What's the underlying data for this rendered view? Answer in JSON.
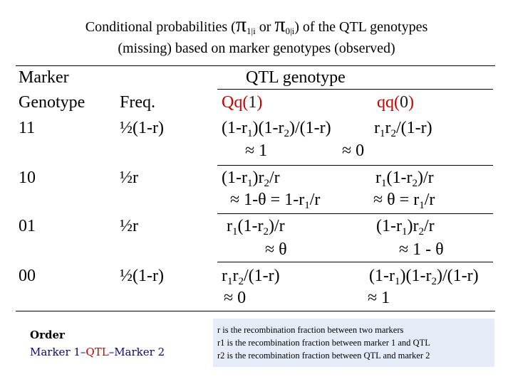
{
  "title": {
    "line1_prefix": "Conditional probabilities (",
    "pi1": "π",
    "sub1": "1|i",
    "or": " or ",
    "pi0": "π",
    "sub0": "0|i",
    "line1_suffix": ") of the QTL genotypes",
    "line2": "(missing) based on marker genotypes (observed)"
  },
  "headers": {
    "marker_line1": "Marker",
    "marker_line2": "Genotype",
    "freq": "Freq.",
    "qtl": "QTL genotype",
    "qq_het": "Qq(",
    "qq_het_code": "1",
    "qq_hom": "qq(",
    "qq_hom_code": "0",
    "close": ")"
  },
  "rows": [
    {
      "genotype": "11",
      "freq": "½(1-r)"
    },
    {
      "genotype": "10",
      "freq": "½r"
    },
    {
      "genotype": "01",
      "freq": "½r"
    },
    {
      "genotype": "00",
      "freq": "½(1-r)"
    }
  ],
  "cells": {
    "r11_qq1": "(1-r1)(1-r2)/(1-r)",
    "r11_qq0": "r1r2/(1-r)",
    "r11_approx1": "≈ 1",
    "r11_approx0": "≈ 0",
    "r10_qq1": "(1-r1)r2/r",
    "r10_qq0": "r1(1-r2)/r",
    "r10_approx1": "≈ 1-θ = 1-r1/r",
    "r10_approx0": "≈ θ = r1/r",
    "r01_qq1": "r1(1-r2)/r",
    "r01_qq0": "(1-r1)r2/r",
    "r01_approx1": "≈ θ",
    "r01_approx0": "≈ 1 - θ",
    "r00_qq1": "r1r2/(1-r)",
    "r00_qq0": "(1-r1)(1-r2)/(1-r)",
    "r00_approx1": "≈ 0",
    "r00_approx0": "≈ 1"
  },
  "order": {
    "label": "Order",
    "marker1": "Marker 1–",
    "qtl": "QTL",
    "marker2": "–Marker 2"
  },
  "notes": {
    "line1": "r is the recombination fraction between two markers",
    "line2": "r1 is the recombination fraction between marker 1 and QTL",
    "line3": "r2 is the recombination fraction between QTL and marker 2"
  }
}
